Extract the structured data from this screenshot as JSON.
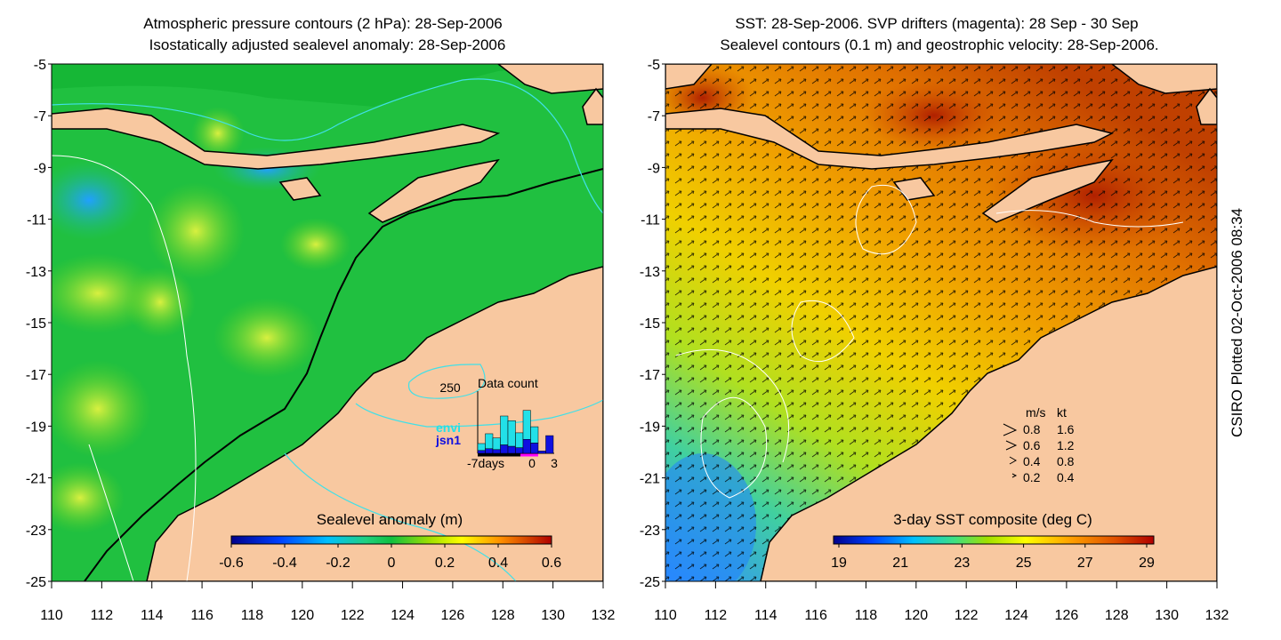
{
  "left_panel": {
    "title_line1": "Atmospheric pressure contours (2 hPa): 28-Sep-2006",
    "title_line2": "Isostatically adjusted sealevel anomaly: 28-Sep-2006",
    "colorbar_label": "Sealevel anomaly (m)",
    "colorbar_ticks": [
      "-0.6",
      "-0.4",
      "-0.2",
      "0",
      "0.2",
      "0.4",
      "0.6"
    ],
    "contour_label": "250",
    "inset": {
      "title": "Data count",
      "legend": [
        {
          "label": "envi",
          "color": "#22e0e8"
        },
        {
          "label": "jsn1",
          "color": "#1010e0"
        }
      ],
      "x_label_start": "-7days",
      "x_label_mid": "0",
      "x_label_end": "3",
      "bars_envi": [
        0.15,
        0.32,
        0.25,
        0.62,
        0.55,
        0.32,
        0.62,
        0.35,
        0.0,
        0.0
      ],
      "bars_jsn1": [
        0.06,
        0.1,
        0.08,
        0.18,
        0.15,
        0.12,
        0.3,
        0.22,
        0.05,
        0.38
      ]
    }
  },
  "right_panel": {
    "title_line1": "SST: 28-Sep-2006. SVP drifters (magenta): 28 Sep - 30 Sep",
    "title_line2": "Sealevel contours (0.1 m) and geostrophic velocity: 28-Sep-2006.",
    "colorbar_label": "3-day SST composite (deg C)",
    "colorbar_ticks": [
      "19",
      "21",
      "23",
      "25",
      "27",
      "29"
    ],
    "speed_legend": {
      "header_ms": "m/s",
      "header_kt": "kt",
      "rows": [
        {
          "ms": "0.8",
          "kt": "1.6"
        },
        {
          "ms": "0.6",
          "kt": "1.2"
        },
        {
          "ms": "0.4",
          "kt": "0.8"
        },
        {
          "ms": "0.2",
          "kt": "0.4"
        }
      ]
    }
  },
  "axes": {
    "x_ticks": [
      "110",
      "112",
      "114",
      "116",
      "118",
      "120",
      "122",
      "124",
      "126",
      "128",
      "130",
      "132"
    ],
    "y_ticks": [
      "-5",
      "-7",
      "-9",
      "-11",
      "-13",
      "-15",
      "-17",
      "-19",
      "-21",
      "-23",
      "-25"
    ]
  },
  "credit": "CSIRO Plotted 02-Oct-2006 08:34",
  "colors": {
    "land": "#f8c8a0",
    "coast": "#000000",
    "pressure_contour": "#40e0e8"
  }
}
